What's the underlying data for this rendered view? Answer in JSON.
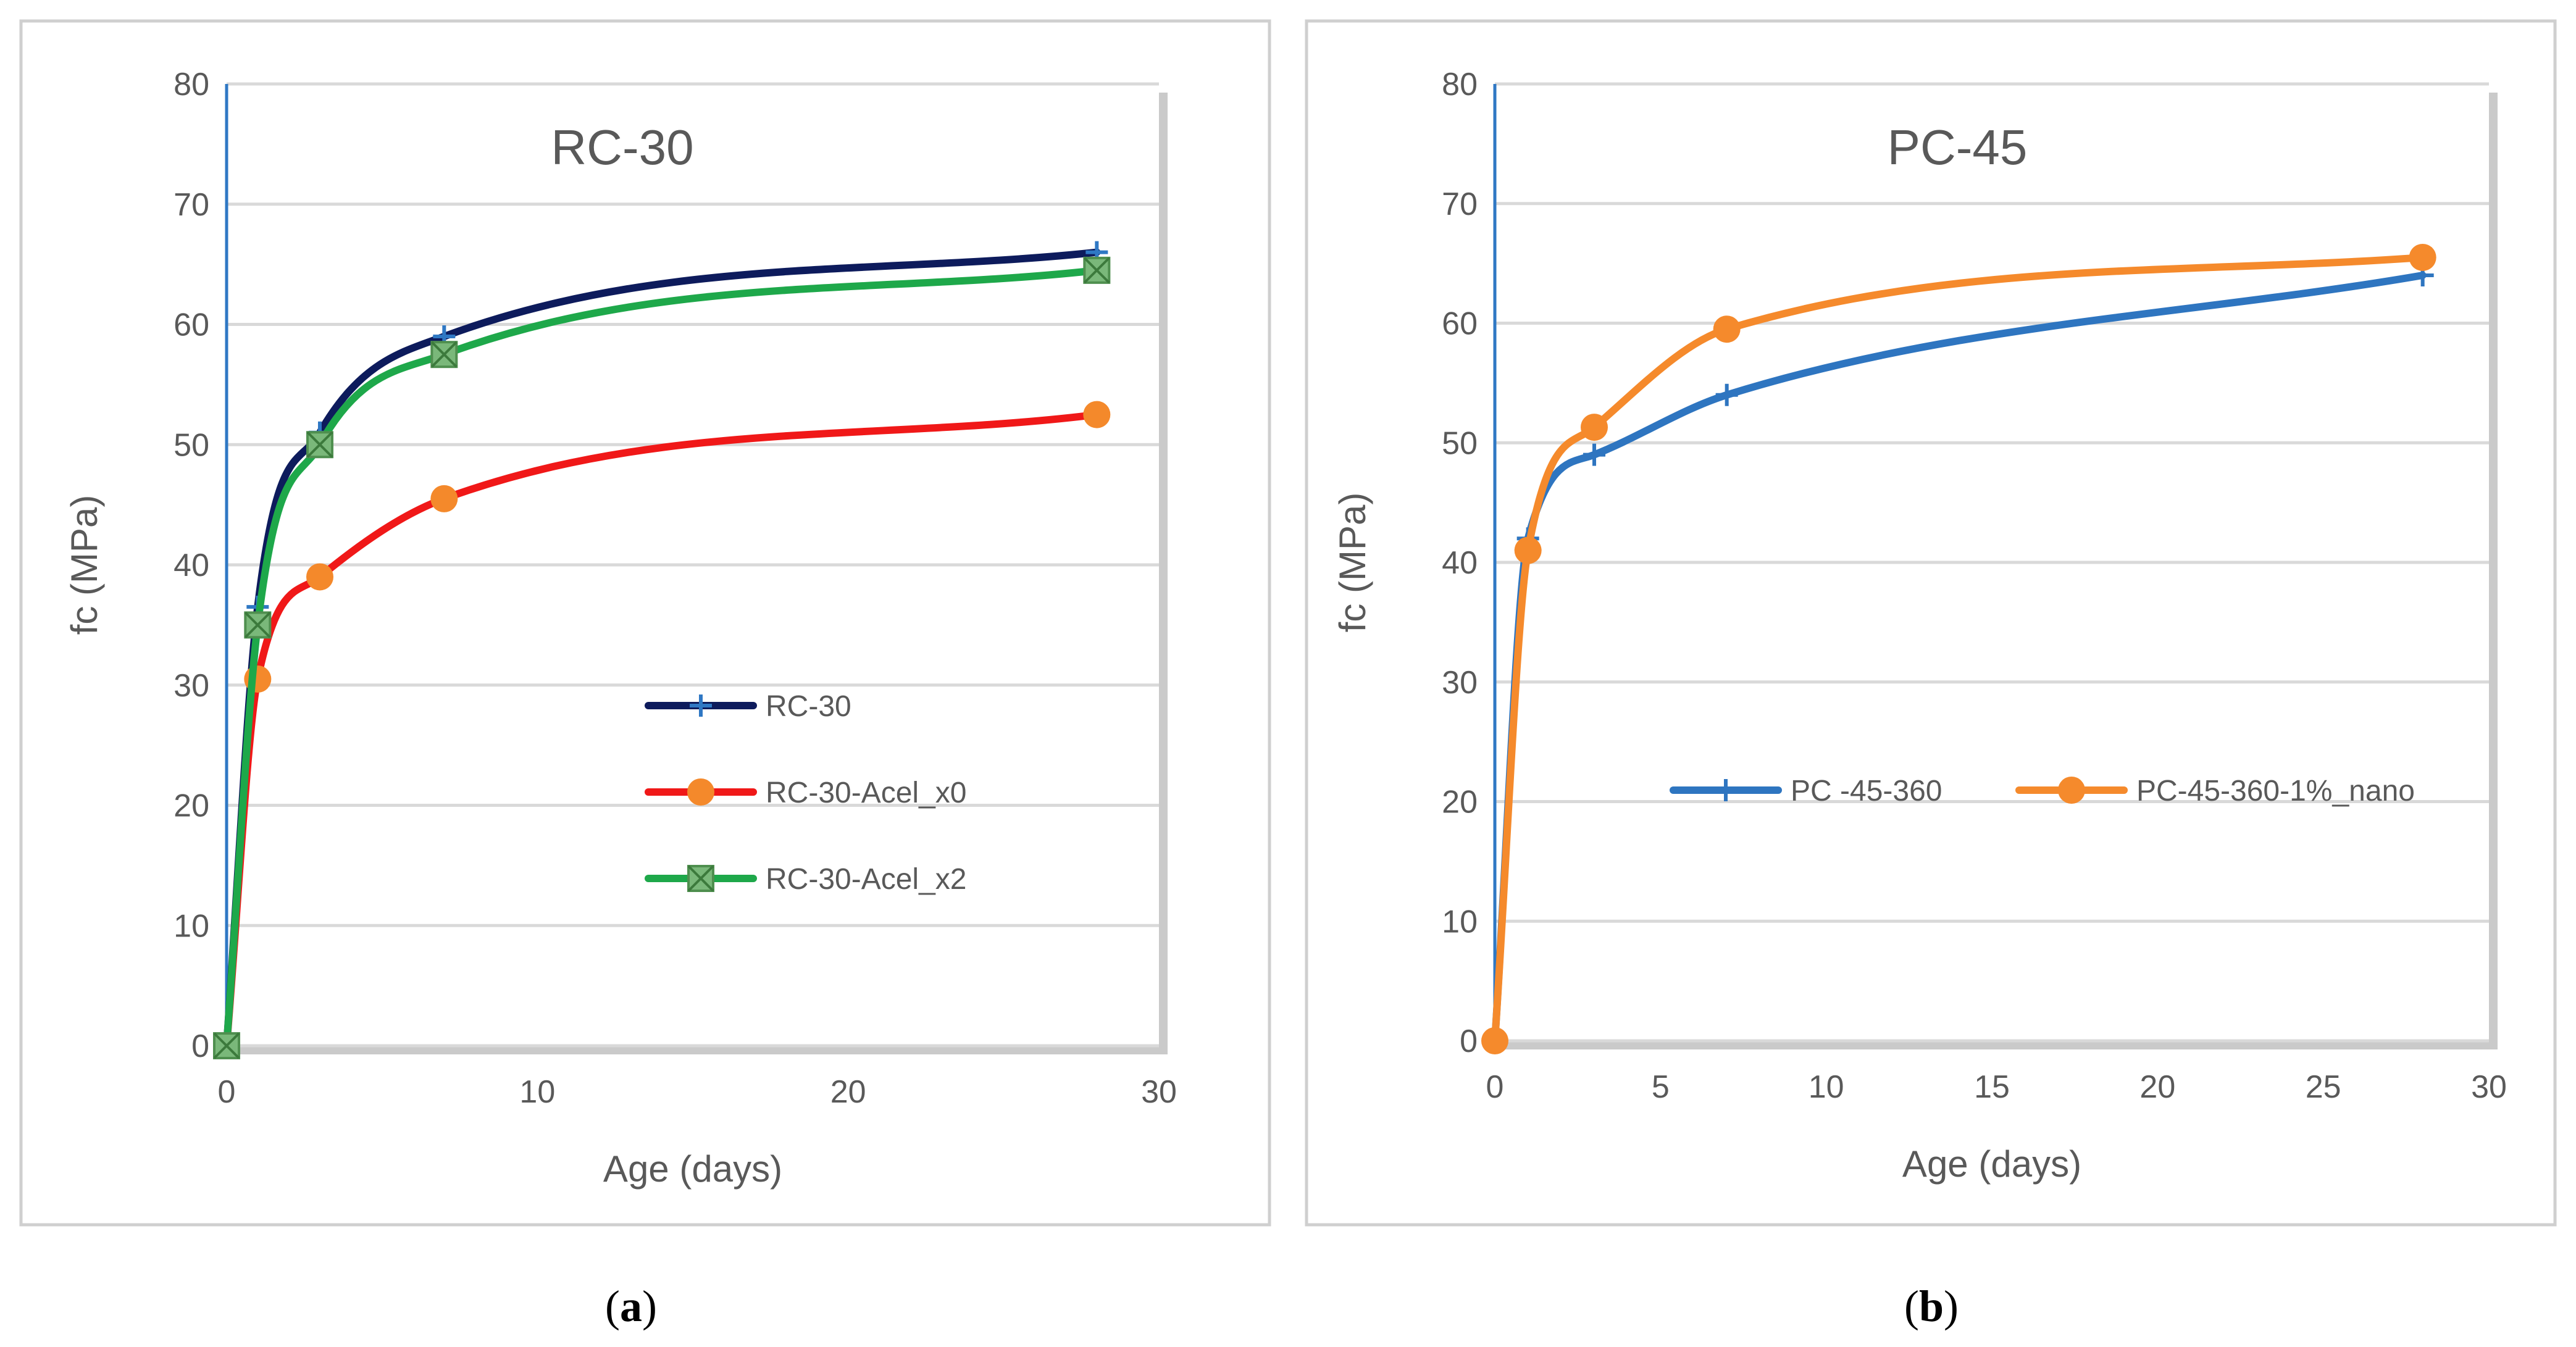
{
  "captions": {
    "left_open": "(",
    "left_letter": "a",
    "left_close": ")",
    "right_open": "(",
    "right_letter": "b",
    "right_close": ")"
  },
  "chart_data": [
    {
      "type": "line",
      "title": "RC-30",
      "xlabel": "Age (days)",
      "ylabel": "fc (MPa)",
      "xlim": [
        0,
        30
      ],
      "ylim": [
        0,
        80
      ],
      "xticks": [
        0,
        10,
        20,
        30
      ],
      "yticks": [
        0,
        10,
        20,
        30,
        40,
        50,
        60,
        70,
        80
      ],
      "grid": true,
      "legend_position": "center-right",
      "legend_layout": "vertical",
      "series": [
        {
          "name": "RC-30",
          "color": "#0d1b5c",
          "marker": "plus",
          "marker_color": "#2f78c4",
          "x": [
            0,
            1,
            3,
            7,
            28
          ],
          "y": [
            0,
            36.5,
            51,
            59,
            66
          ]
        },
        {
          "name": "RC-30-Acel_x0",
          "color": "#f01818",
          "marker": "circle",
          "marker_color": "#f4892b",
          "x": [
            0,
            1,
            3,
            7,
            28
          ],
          "y": [
            0,
            30.5,
            39,
            45.5,
            52.5
          ]
        },
        {
          "name": "RC-30-Acel_x2",
          "color": "#1ea84a",
          "marker": "x-square",
          "marker_color": "#7ab87a",
          "x": [
            0,
            1,
            3,
            7,
            28
          ],
          "y": [
            0,
            35,
            50,
            57.5,
            64.5
          ]
        }
      ]
    },
    {
      "type": "line",
      "title": "PC-45",
      "xlabel": "Age (days)",
      "ylabel": "fc (MPa)",
      "xlim": [
        0,
        30
      ],
      "ylim": [
        0,
        80
      ],
      "xticks": [
        0,
        5,
        10,
        15,
        20,
        25,
        30
      ],
      "yticks": [
        0,
        10,
        20,
        30,
        40,
        50,
        60,
        70,
        80
      ],
      "grid": true,
      "legend_position": "center-right",
      "legend_layout": "horizontal",
      "series": [
        {
          "name": "PC -45-360",
          "color": "#2e75c0",
          "marker": "plus",
          "marker_color": "#2e75c0",
          "x": [
            0,
            1,
            3,
            7,
            28
          ],
          "y": [
            0,
            42,
            49,
            54,
            64
          ]
        },
        {
          "name": "PC-45-360-1%_nano",
          "color": "#f58a2c",
          "marker": "circle",
          "marker_color": "#f58a2c",
          "x": [
            0,
            1,
            3,
            7,
            28
          ],
          "y": [
            0,
            41,
            51.3,
            59.5,
            65.5
          ]
        }
      ]
    }
  ]
}
